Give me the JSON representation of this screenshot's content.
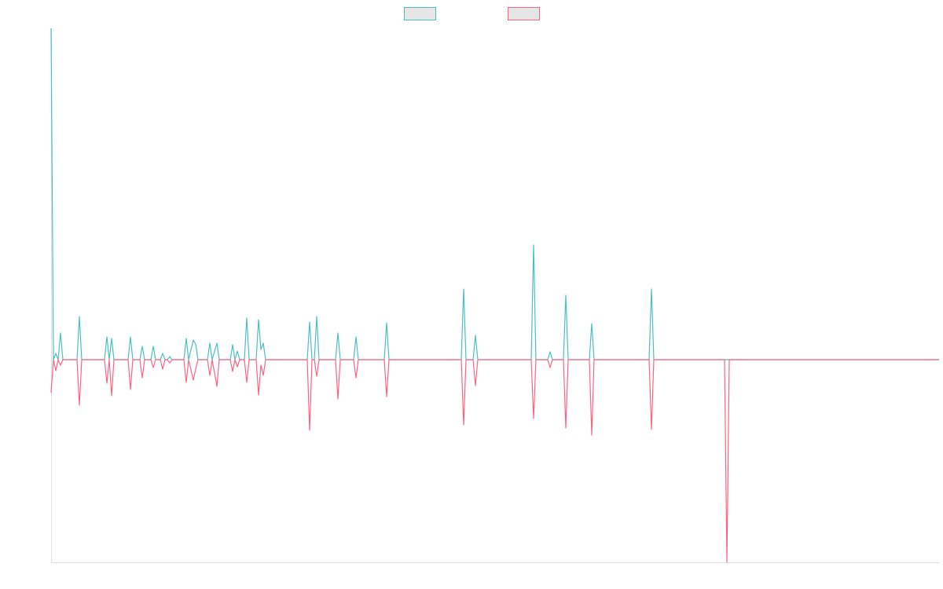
{
  "chart_data": {
    "type": "line",
    "x": [
      0,
      3,
      6,
      9,
      12,
      15,
      33,
      36,
      39,
      68,
      71,
      74,
      77,
      80,
      98,
      101,
      104,
      113,
      116,
      119,
      127,
      130,
      133,
      139,
      142,
      145,
      148,
      151,
      154,
      169,
      172,
      175,
      181,
      184,
      187,
      199,
      202,
      205,
      211,
      214,
      228,
      231,
      234,
      237,
      240,
      246,
      249,
      252,
      261,
      264,
      267,
      270,
      273,
      326,
      329,
      332,
      335,
      338,
      341,
      362,
      365,
      368,
      385,
      388,
      391,
      424,
      427,
      430,
      522,
      525,
      528,
      537,
      540,
      543,
      611,
      614,
      617,
      632,
      635,
      638,
      652,
      655,
      658,
      685,
      688,
      691,
      761,
      764,
      767,
      857,
      860,
      863,
      1130
    ],
    "series": [
      {
        "color": "#4bc0c0",
        "values": [
          422,
          0,
          8,
          0,
          34,
          0,
          0,
          55,
          0,
          0,
          29,
          0,
          27,
          0,
          0,
          29,
          0,
          0,
          17,
          0,
          0,
          17,
          0,
          0,
          8,
          0,
          0,
          4,
          0,
          0,
          27,
          0,
          25,
          20,
          0,
          0,
          21,
          0,
          21,
          0,
          0,
          19,
          0,
          11,
          0,
          0,
          53,
          0,
          0,
          51,
          13,
          21,
          0,
          0,
          48,
          0,
          0,
          55,
          0,
          0,
          34,
          0,
          0,
          29,
          0,
          0,
          47,
          0,
          0,
          90,
          0,
          0,
          31,
          0,
          0,
          146,
          0,
          0,
          10,
          0,
          0,
          82,
          0,
          0,
          46,
          0,
          0,
          90,
          0,
          0,
          0,
          0,
          0
        ]
      },
      {
        "color": "#ff6384",
        "values": [
          -42,
          0,
          -14,
          0,
          -7,
          0,
          0,
          -58,
          0,
          0,
          -30,
          0,
          -46,
          0,
          0,
          -38,
          0,
          0,
          -23,
          0,
          0,
          -10,
          0,
          0,
          -12,
          0,
          0,
          -4,
          0,
          0,
          -29,
          0,
          -26,
          -12,
          0,
          0,
          -20,
          0,
          -34,
          0,
          0,
          -15,
          0,
          -9,
          0,
          0,
          -29,
          0,
          0,
          -45,
          -7,
          -20,
          0,
          0,
          -90,
          0,
          0,
          -21,
          0,
          0,
          -50,
          0,
          0,
          -23,
          0,
          0,
          -47,
          0,
          0,
          -83,
          0,
          0,
          -33,
          0,
          0,
          -75,
          0,
          0,
          -10,
          0,
          0,
          -87,
          0,
          0,
          -96,
          0,
          0,
          -89,
          0,
          0,
          -258,
          0,
          0
        ]
      }
    ],
    "xlim": [
      0,
      1130
    ],
    "ylim": [
      -258,
      422
    ]
  }
}
